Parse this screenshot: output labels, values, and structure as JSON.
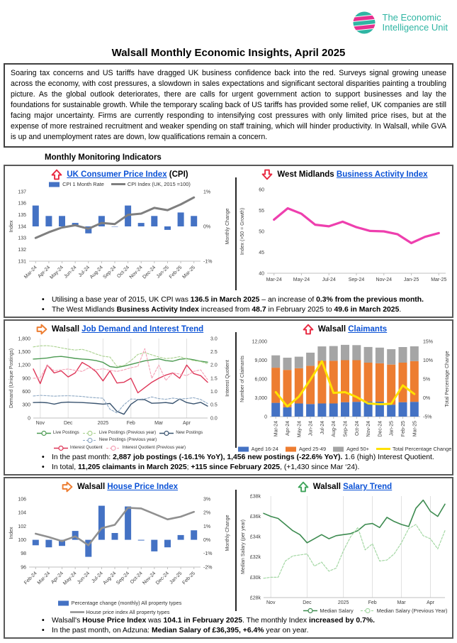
{
  "logo": {
    "line1": "The Economic",
    "line2": "Intelligence Unit",
    "teal": "#2FB5A3",
    "pink": "#E6308F"
  },
  "title": "Walsall Monthly Economic Insights, April 2025",
  "intro": "Soaring tax concerns and US tariffs have dragged UK business confidence back into the red. Surveys signal growing unease across the economy, with cost pressures, a slowdown in sales expectations and significant sectoral disparities painting a troubling picture. As the global outlook deteriorates, there are calls for urgent government action to support businesses and lay the foundations for sustainable growth. While the temporary scaling back of US tariffs has provided some relief, UK companies are still facing major uncertainty. Firms are currently responding to intensifying cost pressures with only limited price rises, but at the expense of more restrained recruitment and weaker spending on staff training, which will hinder productivity. In Walsall, while GVA is up and unemployment rates are down, low qualifications remain a concern.",
  "monitoring_heading": "Monthly Monitoring Indicators",
  "link_color": "#0B52D6",
  "sections": [
    {
      "panels": [
        {
          "arrow": {
            "dir": "up",
            "color": "#E8273F"
          },
          "title": [
            {
              "t": "UK Consumer Price Index",
              "link": true
            },
            {
              "t": " (CPI)"
            }
          ]
        },
        {
          "arrow": {
            "dir": "down",
            "color": "#E8273F"
          },
          "title": [
            {
              "t": "West Midlands "
            },
            {
              "t": "Business Activity Index",
              "link": true
            }
          ]
        }
      ],
      "bullets": [
        [
          {
            "t": "Utilising a base year of 2015, UK CPI was "
          },
          {
            "t": "136.5 in March 2025",
            "b": true
          },
          {
            "t": " – an increase of "
          },
          {
            "t": "0.3%",
            "b": true
          },
          {
            "t": " from the previous month.",
            "b": true
          }
        ],
        [
          {
            "t": "The West Midlands "
          },
          {
            "t": "Business Activity Index",
            "b": true
          },
          {
            "t": " increased from "
          },
          {
            "t": "48.7",
            "b": true
          },
          {
            "t": " in February 2025 to "
          },
          {
            "t": "49.6 in March 2025",
            "b": true
          },
          {
            "t": "."
          }
        ]
      ]
    },
    {
      "panels": [
        {
          "arrow": {
            "dir": "right",
            "color": "#ED7D31"
          },
          "title": [
            {
              "t": "Walsall "
            },
            {
              "t": "Job Demand and Interest Trend",
              "link": true
            }
          ]
        },
        {
          "arrow": {
            "dir": "up",
            "color": "#E8273F"
          },
          "title": [
            {
              "t": "Walsall "
            },
            {
              "t": "Claimants",
              "link": true
            }
          ]
        }
      ],
      "bullets": [
        [
          {
            "t": "In the past month: "
          },
          {
            "t": "2,887 job postings (-16.1% YoY), 1,456 new postings (-22.6% YoY).",
            "b": true
          },
          {
            "t": " 1.6 (high) Interest Quotient."
          }
        ],
        [
          {
            "t": "In total, "
          },
          {
            "t": "11,205 claimants in March 2025",
            "b": true
          },
          {
            "t": "; "
          },
          {
            "t": "+115 since February 2025",
            "b": true
          },
          {
            "t": ", (+1,430 since Mar ‘24)."
          }
        ]
      ]
    },
    {
      "panels": [
        {
          "arrow": {
            "dir": "right",
            "color": "#ED7D31"
          },
          "title": [
            {
              "t": "Walsall "
            },
            {
              "t": "House Price Index",
              "link": true
            }
          ]
        },
        {
          "arrow": {
            "dir": "up",
            "color": "#3FA45B"
          },
          "title": [
            {
              "t": "Walsall "
            },
            {
              "t": "Salary Trend",
              "link": true
            }
          ]
        }
      ],
      "bullets": [
        [
          {
            "t": "Walsall's "
          },
          {
            "t": "House Price Index",
            "b": true
          },
          {
            "t": " was "
          },
          {
            "t": "104.1 in February 2025",
            "b": true
          },
          {
            "t": ". The monthly Index "
          },
          {
            "t": "increased by 0.7%.",
            "b": true
          }
        ],
        [
          {
            "t": "In the past month, on Adzuna: "
          },
          {
            "t": "Median Salary of £36,395, +6.4%",
            "b": true
          },
          {
            "t": " year on year."
          }
        ]
      ]
    }
  ],
  "chart_data": [
    {
      "type": "bar",
      "title": "UK Consumer Price Index (CPI)",
      "categories": [
        "Mar-24",
        "Apr-24",
        "May-24",
        "Jun-24",
        "Jul-24",
        "Aug-24",
        "Sep-24",
        "Oct-24",
        "Nov-24",
        "Dec-24",
        "Jan-25",
        "Feb-25",
        "Mar-25"
      ],
      "left_axis": {
        "label": "Index",
        "min": 131,
        "max": 137,
        "ticks": [
          131,
          132,
          133,
          134,
          135,
          136,
          137
        ]
      },
      "right_axis": {
        "label": "Monthly Change",
        "min": -1,
        "max": 1,
        "ticks": [
          -1,
          0,
          1
        ],
        "format": "percent"
      },
      "series": [
        {
          "name": "CPI 1 Month Rate",
          "type": "bar",
          "axis": "right",
          "color": "#4472C4",
          "values": [
            0.6,
            0.3,
            0.3,
            0.1,
            -0.2,
            0.3,
            0,
            0.6,
            0.1,
            0.3,
            -0.1,
            0.4,
            0.3
          ]
        },
        {
          "name": "CPI Index (UK, 2015 =100)",
          "type": "line",
          "axis": "left",
          "color": "#7F7F7F",
          "width": 3,
          "values": [
            133.0,
            133.5,
            133.9,
            134.1,
            133.8,
            134.3,
            134.2,
            135.0,
            135.1,
            135.6,
            135.4,
            135.9,
            136.5
          ]
        }
      ],
      "legend_position": "top"
    },
    {
      "type": "line",
      "title": "West Midlands Business Activity Index",
      "categories": [
        "Mar-24",
        "Apr-24",
        "May-24",
        "Jun-24",
        "Jul-24",
        "Aug-24",
        "Sep-24",
        "Oct-24",
        "Nov-24",
        "Dec-24",
        "Jan-25",
        "Feb-25",
        "Mar-25"
      ],
      "axis": {
        "label": "Index (>50 = Growth)",
        "min": 40,
        "max": 60,
        "ticks": [
          40,
          45,
          50,
          55,
          60
        ]
      },
      "series": [
        {
          "type": "line",
          "color": "#EE3FAE",
          "width": 3.2,
          "values": [
            52.8,
            55.5,
            54.2,
            51.6,
            51.2,
            52.3,
            51.0,
            50.1,
            50.0,
            49.3,
            47.2,
            48.7,
            49.6
          ]
        }
      ]
    },
    {
      "type": "line",
      "title": "Walsall Job Demand and Interest Trend",
      "x_labels": [
        "Nov",
        "Dec",
        "2025",
        "Feb",
        "Mar",
        "Apr"
      ],
      "left_axis": {
        "label": "Demand (Unique Postings)",
        "min": 0,
        "max": 1800,
        "ticks": [
          0,
          300,
          600,
          900,
          1200,
          1500,
          1800
        ],
        "format": "comma"
      },
      "right_axis": {
        "label": "Interest Quotient",
        "min": 0,
        "max": 3,
        "ticks": [
          0,
          0.5,
          1,
          1.5,
          2,
          2.5,
          3
        ],
        "format": "1dp"
      },
      "series": [
        {
          "name": "Live Postings",
          "type": "line",
          "axis": "left",
          "color": "#4C9A52",
          "width": 1.4,
          "marker": true,
          "values": [
            1335,
            1345,
            1360,
            1385,
            1395,
            1375,
            1350,
            1335,
            1325,
            1300,
            1260,
            1165,
            1145,
            1175,
            1215,
            1255,
            1295,
            1320,
            1340,
            1300,
            1285,
            1330,
            1345,
            1320,
            1285,
            1265
          ]
        },
        {
          "name": "Live Postings (Previous year)",
          "type": "line",
          "axis": "left",
          "color": "#A9D18E",
          "width": 1.1,
          "dash": "3,2",
          "marker": true,
          "values": [
            1610,
            1635,
            1640,
            1620,
            1590,
            1560,
            1540,
            1555,
            1510,
            1450,
            1400,
            1380,
            1170,
            1190,
            1300,
            1440,
            1480,
            1430,
            1380,
            1345,
            1360,
            1390,
            1340,
            1300,
            1280,
            1230
          ]
        },
        {
          "name": "New Postings",
          "type": "line",
          "axis": "left",
          "color": "#39536F",
          "width": 1.4,
          "marker": true,
          "values": [
            350,
            355,
            345,
            315,
            350,
            360,
            355,
            350,
            340,
            330,
            315,
            330,
            150,
            85,
            310,
            420,
            415,
            335,
            340,
            350,
            330,
            430,
            350,
            320,
            355,
            270
          ]
        },
        {
          "name": "New Postings (Previous year)",
          "type": "line",
          "axis": "left",
          "color": "#8EA9C4",
          "width": 1.1,
          "dash": "3,2",
          "marker": true,
          "values": [
            500,
            512,
            505,
            495,
            502,
            505,
            498,
            488,
            470,
            458,
            448,
            200,
            115,
            300,
            430,
            425,
            432,
            478,
            440,
            425,
            452,
            430,
            442,
            460,
            420,
            330
          ]
        },
        {
          "name": "Interest Quotient",
          "type": "line",
          "axis": "right",
          "color": "#DE3557",
          "width": 1.4,
          "marker": true,
          "values": [
            1.85,
            1.3,
            2.0,
            1.7,
            1.78,
            1.55,
            1.7,
            2.1,
            1.95,
            1.75,
            1.4,
            1.78,
            1.32,
            1.35,
            1.5,
            0.95,
            1.15,
            1.35,
            1.5,
            1.62,
            1.7,
            1.5,
            2.0,
            1.68,
            1.6,
            1.35
          ]
        },
        {
          "name": "Interest Quotient (Previous year)",
          "type": "line",
          "axis": "right",
          "color": "#F4A0B5",
          "width": 1.1,
          "dash": "3,2",
          "marker": true,
          "values": [
            1.5,
            1.52,
            2.0,
            1.78,
            1.82,
            1.85,
            1.8,
            1.76,
            1.9,
            1.82,
            1.86,
            1.8,
            1.76,
            1.82,
            1.9,
            1.95,
            2.62,
            1.5,
            2.0,
            1.42,
            1.7,
            1.66,
            1.6,
            1.76,
            1.82,
            1.45
          ]
        }
      ],
      "legend_position": "bottom"
    },
    {
      "type": "bar",
      "title": "Walsall Claimants",
      "categories": [
        "Mar-24",
        "Apr-24",
        "May-24",
        "Jun-24",
        "Jul-24",
        "Aug-24",
        "Sep-24",
        "Oct-24",
        "Nov-24",
        "Dec-24",
        "Jan-25",
        "Feb-25",
        "Mar-25"
      ],
      "left_axis": {
        "label": "Number of Claimants",
        "min": 0,
        "max": 12000,
        "ticks": [
          0,
          3000,
          6000,
          9000,
          12000
        ],
        "format": "comma"
      },
      "right_axis": {
        "label": "Total Percentage Change",
        "min": -5,
        "max": 15,
        "ticks": [
          -5,
          0,
          5,
          10,
          15
        ],
        "format": "percent"
      },
      "series": [
        {
          "name": "Aged 16-24",
          "type": "stack",
          "axis": "left",
          "color": "#4472C4",
          "values": [
            2200,
            1500,
            2100,
            2000,
            2100,
            2100,
            2300,
            2350,
            2400,
            2400,
            1900,
            2300,
            2350
          ]
        },
        {
          "name": "Aged 25-49",
          "type": "stack",
          "axis": "left",
          "color": "#ED7D31",
          "values": [
            5600,
            5950,
            5600,
            6100,
            6800,
            6800,
            6700,
            6650,
            6200,
            6100,
            6400,
            6300,
            6500
          ]
        },
        {
          "name": "Aged 50+",
          "type": "stack",
          "axis": "left",
          "color": "#A5A5A5",
          "values": [
            1975,
            1950,
            1850,
            2100,
            2300,
            2350,
            2450,
            2400,
            2500,
            2500,
            2450,
            2490,
            2355
          ]
        },
        {
          "name": "Total Percentage Change",
          "type": "line",
          "axis": "right",
          "color": "#FFE100",
          "width": 3,
          "values": [
            1.5,
            -2.3,
            0.3,
            4.8,
            9.7,
            1.3,
            1.5,
            0.2,
            -1.5,
            -1.7,
            -1.6,
            3.3,
            1.0
          ]
        }
      ],
      "legend_position": "bottom"
    },
    {
      "type": "bar",
      "title": "Walsall House Price Index",
      "categories": [
        "Feb-24",
        "Mar-24",
        "Apr-24",
        "May-24",
        "Jun-24",
        "Jul-24",
        "Aug-24",
        "Sep-24",
        "Oct-24",
        "Nov-24",
        "Dec-24",
        "Jan-25",
        "Feb-25"
      ],
      "left_axis": {
        "label": "Index",
        "min": 96,
        "max": 106,
        "ticks": [
          96,
          98,
          100,
          102,
          104,
          106
        ]
      },
      "right_axis": {
        "label": "Monthly Change",
        "min": -2,
        "max": 3,
        "ticks": [
          -2,
          -1,
          0,
          1,
          2,
          3
        ],
        "format": "percent"
      },
      "series": [
        {
          "name": "Percentage change (monthly) All property types",
          "type": "bar",
          "axis": "right",
          "color": "#4472C4",
          "values": [
            -0.4,
            -0.55,
            -0.45,
            0.65,
            -1.25,
            2.5,
            0.5,
            2.45,
            -0.05,
            -0.85,
            -0.55,
            0.35,
            0.7
          ]
        },
        {
          "name": "House price index All property types",
          "type": "line",
          "axis": "left",
          "color": "#909090",
          "width": 2.6,
          "values": [
            100.9,
            100.4,
            99.8,
            100.5,
            99.2,
            101.7,
            102.2,
            104.7,
            104.6,
            103.8,
            103.0,
            103.4,
            104.1
          ]
        }
      ],
      "legend_position": "bottom"
    },
    {
      "type": "line",
      "title": "Walsall Salary Trend",
      "x_labels": [
        "Nov",
        "Dec",
        "2025",
        "Feb",
        "Mar",
        "Apr"
      ],
      "axis": {
        "label": "Median Salary (per year)",
        "min": 28,
        "max": 38,
        "ticks": [
          28,
          30,
          32,
          34,
          36,
          38
        ],
        "format": "poundk"
      },
      "series": [
        {
          "name": "Median Salary",
          "type": "line",
          "color": "#3D8B50",
          "width": 1.6,
          "marker": true,
          "values": [
            36.3,
            36.0,
            35.8,
            35.2,
            34.6,
            34.2,
            33.4,
            33.8,
            34.2,
            33.8,
            34.1,
            34.2,
            34.3,
            34.6,
            35.2,
            35.3,
            34.9,
            35.9,
            35.5,
            35.2,
            35.0,
            36.8,
            37.6,
            36.5,
            36.0,
            37.2
          ]
        },
        {
          "name": "Median Salary (Previous Year)",
          "type": "line",
          "color": "#A4D7A4",
          "width": 1.2,
          "dash": "3,2",
          "marker": true,
          "values": [
            29.9,
            30.0,
            30.0,
            31.6,
            32.1,
            32.2,
            32.3,
            31.1,
            31.5,
            30.6,
            30.9,
            32.6,
            34.0,
            34.9,
            32.7,
            33.3,
            31.6,
            31.7,
            32.3,
            33.4,
            34.8,
            35.2,
            34.1,
            33.8,
            32.8,
            34.6
          ]
        }
      ],
      "legend_position": "bottom"
    }
  ]
}
